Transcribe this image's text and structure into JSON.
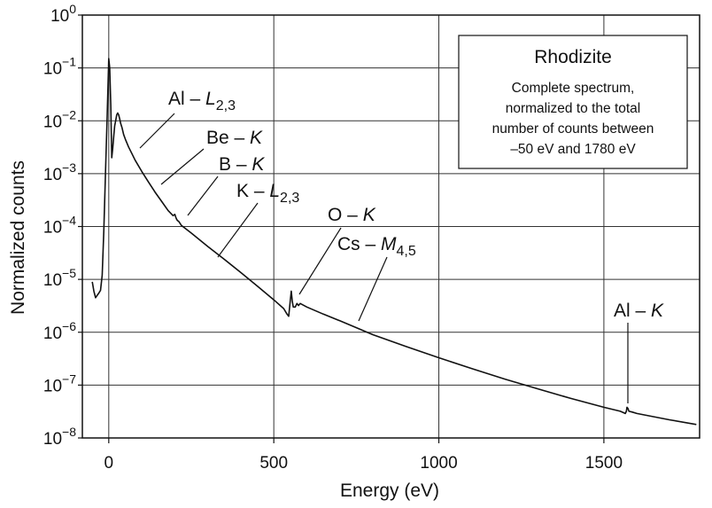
{
  "chart_data": {
    "type": "line",
    "xlabel": "Energy  (eV)",
    "ylabel": "Normalized counts",
    "xlim": [
      -80,
      1790
    ],
    "ylim": [
      1e-08,
      1
    ],
    "yscale": "log",
    "grid": true,
    "x_ticks": [
      0,
      500,
      1000,
      1500
    ],
    "x_tick_labels": [
      "0",
      "500",
      "1000",
      "1500"
    ],
    "y_ticks": [
      {
        "value": 1,
        "base": "10",
        "exp": "0"
      },
      {
        "value": 0.1,
        "base": "10",
        "exp": "−1"
      },
      {
        "value": 0.01,
        "base": "10",
        "exp": "−2"
      },
      {
        "value": 0.001,
        "base": "10",
        "exp": "−3"
      },
      {
        "value": 0.0001,
        "base": "10",
        "exp": "−4"
      },
      {
        "value": 1e-05,
        "base": "10",
        "exp": "−5"
      },
      {
        "value": 1e-06,
        "base": "10",
        "exp": "−6"
      },
      {
        "value": 1e-07,
        "base": "10",
        "exp": "−7"
      },
      {
        "value": 1e-08,
        "base": "10",
        "exp": "−8"
      }
    ],
    "legend": {
      "title": "Rhodizite",
      "lines": [
        "Complete spectrum,",
        "normalized to the total",
        "number of counts between",
        "–50 eV and 1780 eV"
      ],
      "placement": "top-right"
    },
    "series": [
      {
        "x": [
          -50,
          -45,
          -40,
          -35,
          -30,
          -25,
          -20,
          -15,
          -10,
          -5,
          0,
          3,
          6,
          9,
          12,
          15,
          18,
          21,
          24,
          27,
          30,
          33,
          36,
          40,
          45,
          50,
          60,
          70,
          80,
          100,
          120,
          140,
          160,
          180,
          195,
          200,
          203,
          205,
          208,
          212,
          220,
          250,
          300,
          350,
          400,
          450,
          500,
          530,
          540,
          545,
          550,
          553,
          556,
          559,
          565,
          570,
          575,
          580,
          600,
          650,
          700,
          750,
          800,
          900,
          1000,
          1100,
          1200,
          1300,
          1400,
          1500,
          1550,
          1565,
          1568,
          1570,
          1573,
          1576,
          1585,
          1600,
          1700,
          1780
        ],
        "y": [
          9e-06,
          6e-06,
          4.5e-06,
          5e-06,
          5.5e-06,
          6.2e-06,
          1.2e-05,
          8e-05,
          0.001,
          0.012,
          0.15,
          0.1,
          0.02,
          0.002,
          0.003,
          0.005,
          0.008,
          0.01,
          0.013,
          0.014,
          0.013,
          0.011,
          0.009,
          0.0075,
          0.0055,
          0.0045,
          0.0032,
          0.0024,
          0.0018,
          0.0011,
          0.0007,
          0.00045,
          0.0003,
          0.0002,
          0.00016,
          0.00017,
          0.00015,
          0.00014,
          0.00013,
          0.000125,
          0.000105,
          7.5e-05,
          4.2e-05,
          2.4e-05,
          1.35e-05,
          7.5e-06,
          4.1e-06,
          2.8e-06,
          2.2e-06,
          2e-06,
          4e-06,
          6e-06,
          3.8e-06,
          3e-06,
          3e-06,
          3.5e-06,
          3.2e-06,
          3.5e-06,
          3e-06,
          2.2e-06,
          1.65e-06,
          1.22e-06,
          9e-07,
          5.4e-07,
          3.3e-07,
          2.05e-07,
          1.3e-07,
          8.5e-08,
          5.6e-08,
          3.8e-08,
          3.2e-08,
          2.9e-08,
          3.2e-08,
          3.8e-08,
          3.6e-08,
          3.2e-08,
          3.1e-08,
          2.9e-08,
          2.2e-08,
          1.8e-08
        ]
      }
    ],
    "annotations": [
      {
        "id": "al-l",
        "label": "Al – ",
        "italic": "L",
        "sub": "2,3",
        "x": 95,
        "y": 0.0025
      },
      {
        "id": "be-k",
        "label": "Be – ",
        "italic": "K",
        "sub": "",
        "x": 150,
        "y": 0.00045
      },
      {
        "id": "b-k",
        "label": "B – ",
        "italic": "K",
        "sub": "",
        "x": 220,
        "y": 0.00011
      },
      {
        "id": "k-l",
        "label": "K – ",
        "italic": "L",
        "sub": "2,3",
        "x": 320,
        "y": 3.5e-05
      },
      {
        "id": "o-k",
        "label": "O – ",
        "italic": "K",
        "sub": "",
        "x": 575,
        "y": 4.2e-06
      },
      {
        "id": "cs-m",
        "label": "Cs – ",
        "italic": "M",
        "sub": "4,5",
        "x": 760,
        "y": 1.3e-06
      },
      {
        "id": "al-k",
        "label": "Al – ",
        "italic": "K",
        "sub": "",
        "x": 1573,
        "y": 3.9e-08
      }
    ]
  }
}
